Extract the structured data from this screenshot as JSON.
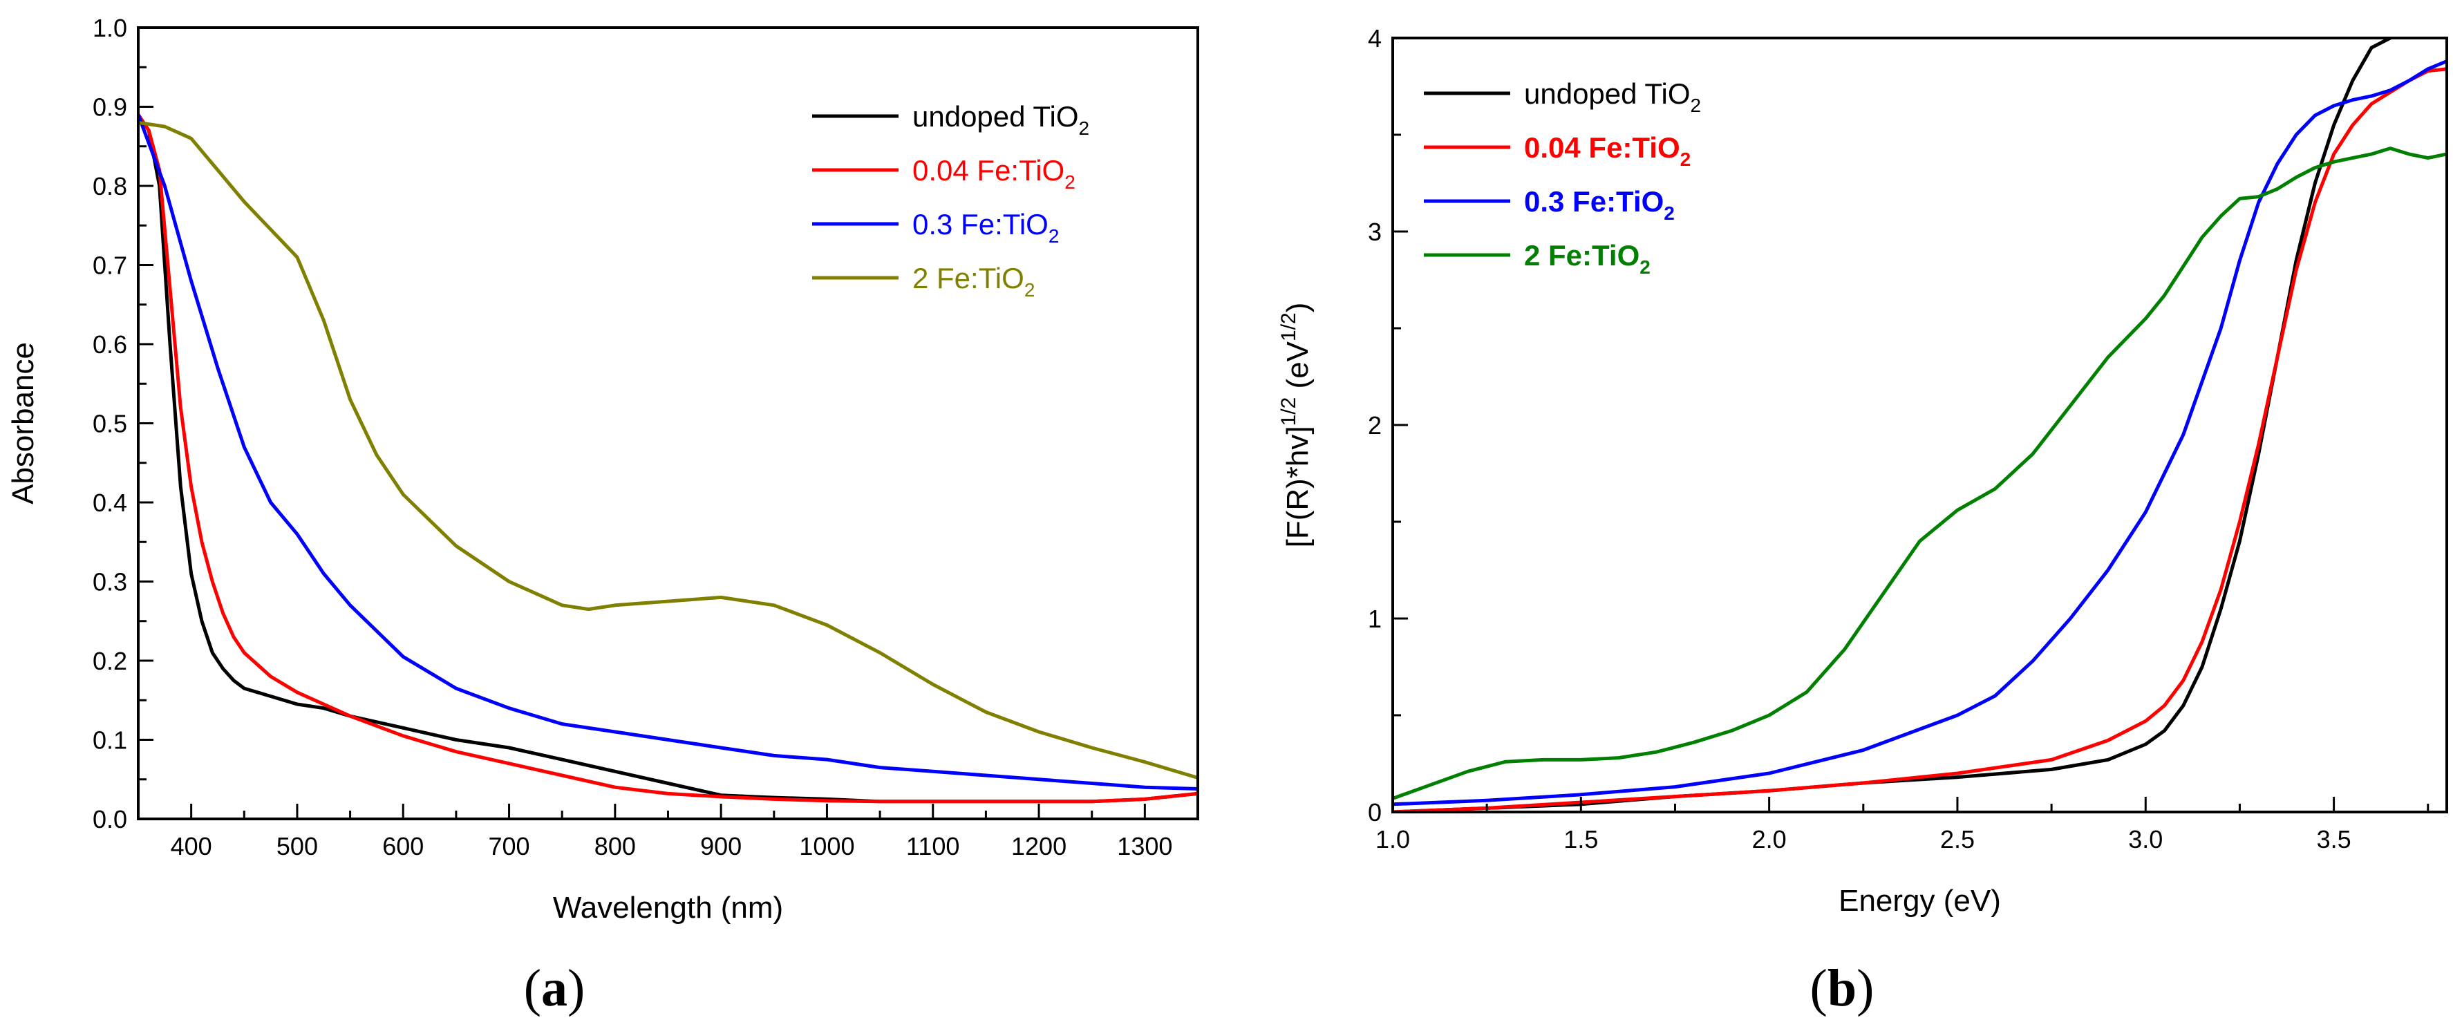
{
  "chart_data": [
    {
      "type": "line",
      "panel_label": {
        "open": "(",
        "letter": "a",
        "close": ")"
      },
      "xlabel": "Wavelength (nm)",
      "ylabel": "Absorbance",
      "xlim": [
        350,
        1350
      ],
      "ylim": [
        0,
        1.0
      ],
      "xticks": [
        400,
        500,
        600,
        700,
        800,
        900,
        1000,
        1100,
        1200,
        1300
      ],
      "yticks": [
        0.0,
        0.1,
        0.2,
        0.3,
        0.4,
        0.5,
        0.6,
        0.7,
        0.8,
        0.9,
        1.0
      ],
      "x_minor_step": 50,
      "y_minor_step": 0.05,
      "legend_position": "top-right",
      "grid": false,
      "series": [
        {
          "name": "undoped TiO",
          "sub": "2",
          "color": "#000000",
          "bold": false,
          "x": [
            350,
            360,
            370,
            380,
            390,
            400,
            410,
            420,
            430,
            440,
            450,
            475,
            500,
            525,
            550,
            600,
            650,
            700,
            750,
            800,
            850,
            900,
            950,
            1000,
            1050,
            1100,
            1150,
            1200,
            1250,
            1300,
            1350
          ],
          "y": [
            0.89,
            0.87,
            0.8,
            0.6,
            0.42,
            0.31,
            0.25,
            0.21,
            0.19,
            0.175,
            0.165,
            0.155,
            0.145,
            0.14,
            0.13,
            0.115,
            0.1,
            0.09,
            0.075,
            0.06,
            0.045,
            0.03,
            0.027,
            0.025,
            0.022,
            0.022,
            0.022,
            0.022,
            0.022,
            0.025,
            0.032
          ]
        },
        {
          "name": "0.04 Fe:TiO",
          "sub": "2",
          "color": "#ff0000",
          "bold": false,
          "x": [
            350,
            360,
            370,
            380,
            390,
            400,
            410,
            420,
            430,
            440,
            450,
            475,
            500,
            525,
            550,
            600,
            650,
            700,
            750,
            800,
            850,
            900,
            950,
            1000,
            1050,
            1100,
            1150,
            1200,
            1250,
            1300,
            1350
          ],
          "y": [
            0.89,
            0.87,
            0.82,
            0.67,
            0.52,
            0.42,
            0.35,
            0.3,
            0.26,
            0.23,
            0.21,
            0.18,
            0.16,
            0.145,
            0.13,
            0.105,
            0.085,
            0.07,
            0.055,
            0.04,
            0.032,
            0.028,
            0.025,
            0.023,
            0.022,
            0.022,
            0.022,
            0.022,
            0.022,
            0.025,
            0.032
          ]
        },
        {
          "name": "0.3 Fe:TiO",
          "sub": "2",
          "color": "#0000ff",
          "bold": false,
          "x": [
            350,
            375,
            400,
            425,
            450,
            475,
            500,
            525,
            550,
            600,
            650,
            700,
            750,
            800,
            850,
            900,
            950,
            1000,
            1050,
            1100,
            1150,
            1200,
            1250,
            1300,
            1350
          ],
          "y": [
            0.89,
            0.8,
            0.68,
            0.57,
            0.47,
            0.4,
            0.36,
            0.31,
            0.27,
            0.205,
            0.165,
            0.14,
            0.12,
            0.11,
            0.1,
            0.09,
            0.08,
            0.075,
            0.065,
            0.06,
            0.055,
            0.05,
            0.045,
            0.04,
            0.038
          ]
        },
        {
          "name": "2 Fe:TiO",
          "sub": "2",
          "color": "#808000",
          "bold": false,
          "x": [
            350,
            375,
            400,
            425,
            450,
            475,
            500,
            525,
            550,
            575,
            600,
            650,
            700,
            750,
            775,
            800,
            850,
            900,
            950,
            1000,
            1050,
            1100,
            1150,
            1200,
            1250,
            1300,
            1350
          ],
          "y": [
            0.88,
            0.875,
            0.86,
            0.82,
            0.78,
            0.745,
            0.71,
            0.63,
            0.53,
            0.46,
            0.41,
            0.345,
            0.3,
            0.27,
            0.265,
            0.27,
            0.275,
            0.28,
            0.27,
            0.245,
            0.21,
            0.17,
            0.135,
            0.11,
            0.09,
            0.072,
            0.052
          ]
        }
      ]
    },
    {
      "type": "line",
      "panel_label": {
        "open": "(",
        "letter": "b",
        "close": ")"
      },
      "xlabel": "Energy (eV)",
      "ylabel": {
        "main": "[F(R)*hv]",
        "sup1": "1/2",
        "mid": " (eV",
        "sup2": "1/2",
        "end": ")"
      },
      "xlim": [
        1.0,
        3.8
      ],
      "ylim": [
        0,
        4
      ],
      "xticks": [
        1.0,
        1.5,
        2.0,
        2.5,
        3.0,
        3.5
      ],
      "yticks": [
        0,
        1,
        2,
        3,
        4
      ],
      "x_minor_step": 0.25,
      "y_minor_step": 0.5,
      "legend_position": "top-left",
      "grid": false,
      "series": [
        {
          "name": "undoped TiO",
          "sub": "2",
          "color": "#000000",
          "bold": false,
          "x": [
            1.0,
            1.25,
            1.5,
            1.75,
            2.0,
            2.25,
            2.5,
            2.75,
            2.9,
            3.0,
            3.05,
            3.1,
            3.15,
            3.2,
            3.25,
            3.3,
            3.35,
            3.4,
            3.45,
            3.5,
            3.55,
            3.6,
            3.65
          ],
          "y": [
            0.0,
            0.02,
            0.04,
            0.08,
            0.11,
            0.15,
            0.18,
            0.22,
            0.27,
            0.35,
            0.42,
            0.55,
            0.75,
            1.05,
            1.4,
            1.85,
            2.35,
            2.85,
            3.25,
            3.55,
            3.78,
            3.95,
            4.0
          ]
        },
        {
          "name": "0.04 Fe:TiO",
          "sub": "2",
          "color": "#ff0000",
          "bold": true,
          "x": [
            1.0,
            1.25,
            1.5,
            1.75,
            2.0,
            2.25,
            2.5,
            2.75,
            2.9,
            3.0,
            3.05,
            3.1,
            3.15,
            3.2,
            3.25,
            3.3,
            3.35,
            3.4,
            3.45,
            3.5,
            3.55,
            3.6,
            3.65,
            3.7,
            3.75,
            3.8
          ],
          "y": [
            0.0,
            0.02,
            0.05,
            0.08,
            0.11,
            0.15,
            0.2,
            0.27,
            0.37,
            0.47,
            0.55,
            0.68,
            0.88,
            1.15,
            1.5,
            1.9,
            2.35,
            2.8,
            3.15,
            3.4,
            3.55,
            3.66,
            3.72,
            3.78,
            3.83,
            3.84
          ]
        },
        {
          "name": "0.3 Fe:TiO",
          "sub": "2",
          "color": "#0000ff",
          "bold": true,
          "x": [
            1.0,
            1.25,
            1.5,
            1.75,
            2.0,
            2.25,
            2.5,
            2.6,
            2.7,
            2.8,
            2.9,
            3.0,
            3.1,
            3.2,
            3.25,
            3.3,
            3.35,
            3.4,
            3.45,
            3.5,
            3.55,
            3.6,
            3.65,
            3.7,
            3.75,
            3.8
          ],
          "y": [
            0.04,
            0.06,
            0.09,
            0.13,
            0.2,
            0.32,
            0.5,
            0.6,
            0.78,
            1.0,
            1.25,
            1.55,
            1.95,
            2.5,
            2.85,
            3.15,
            3.35,
            3.5,
            3.6,
            3.65,
            3.68,
            3.7,
            3.73,
            3.78,
            3.84,
            3.88
          ]
        },
        {
          "name": "2 Fe:TiO",
          "sub": "2",
          "color": "#008000",
          "bold": true,
          "x": [
            1.0,
            1.1,
            1.2,
            1.3,
            1.4,
            1.5,
            1.6,
            1.7,
            1.8,
            1.9,
            2.0,
            2.1,
            2.2,
            2.3,
            2.4,
            2.5,
            2.6,
            2.7,
            2.8,
            2.9,
            3.0,
            3.05,
            3.1,
            3.15,
            3.2,
            3.25,
            3.3,
            3.35,
            3.4,
            3.45,
            3.5,
            3.55,
            3.6,
            3.65,
            3.7,
            3.75,
            3.8
          ],
          "y": [
            0.07,
            0.14,
            0.21,
            0.26,
            0.27,
            0.27,
            0.28,
            0.31,
            0.36,
            0.42,
            0.5,
            0.62,
            0.84,
            1.12,
            1.4,
            1.56,
            1.67,
            1.85,
            2.1,
            2.35,
            2.55,
            2.67,
            2.82,
            2.97,
            3.08,
            3.17,
            3.18,
            3.22,
            3.28,
            3.33,
            3.36,
            3.38,
            3.4,
            3.43,
            3.4,
            3.38,
            3.4
          ]
        }
      ]
    }
  ]
}
